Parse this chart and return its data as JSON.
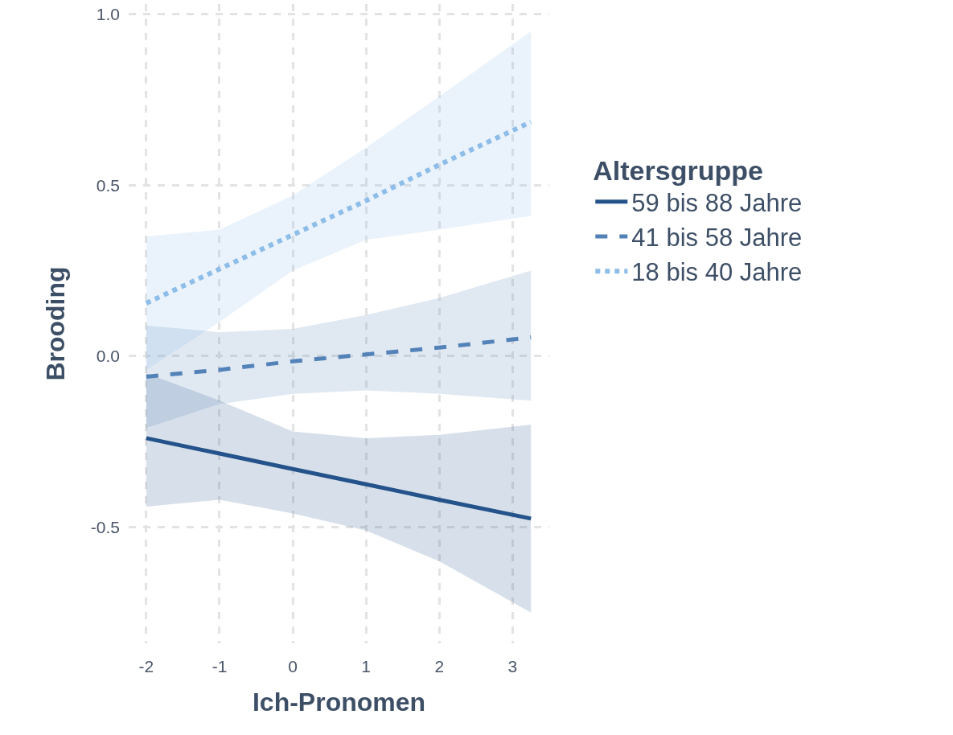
{
  "chart_data": {
    "type": "line",
    "xlabel": "Ich-Pronomen",
    "ylabel": "Brooding",
    "legend_title": "Altersgruppe",
    "legend": "right",
    "grid": true,
    "xlim": [
      -2.24,
      3.5
    ],
    "xticks": [
      -2,
      -1,
      0,
      1,
      2,
      3
    ],
    "ylim": [
      -0.84,
      1.03
    ],
    "yticks": [
      {
        "value": -0.5,
        "label": "-0.5"
      },
      {
        "value": 0,
        "label": "0.0"
      },
      {
        "value": 0.5,
        "label": "0.5"
      },
      {
        "value": 1,
        "label": "1.0"
      }
    ],
    "series": [
      {
        "name": "59 bis 88 Jahre",
        "color": "#24528a",
        "line_style": "solid",
        "x": [
          -2,
          -1,
          0,
          1,
          2,
          3.25
        ],
        "values": [
          -0.24,
          -0.285,
          -0.33,
          -0.375,
          -0.42,
          -0.475
        ],
        "lower": [
          -0.44,
          -0.42,
          -0.46,
          -0.51,
          -0.6,
          -0.75
        ],
        "upper": [
          -0.05,
          -0.13,
          -0.22,
          -0.24,
          -0.23,
          -0.2
        ]
      },
      {
        "name": "41 bis 58 Jahre",
        "color": "#5282b8",
        "line_style": "dashed",
        "x": [
          -2,
          -1,
          0,
          1,
          2,
          3.25
        ],
        "values": [
          -0.06,
          -0.04,
          -0.015,
          0.005,
          0.025,
          0.055
        ],
        "lower": [
          -0.21,
          -0.14,
          -0.11,
          -0.1,
          -0.11,
          -0.13
        ],
        "upper": [
          0.09,
          0.07,
          0.08,
          0.12,
          0.17,
          0.25
        ]
      },
      {
        "name": "18 bis 40 Jahre",
        "color": "#8dbde8",
        "line_style": "dotted",
        "x": [
          -2,
          -1,
          0,
          1,
          2,
          3.25
        ],
        "values": [
          0.155,
          0.255,
          0.355,
          0.455,
          0.56,
          0.685
        ],
        "lower": [
          -0.04,
          0.1,
          0.25,
          0.34,
          0.37,
          0.41
        ],
        "upper": [
          0.35,
          0.37,
          0.47,
          0.61,
          0.76,
          0.95
        ]
      }
    ]
  }
}
